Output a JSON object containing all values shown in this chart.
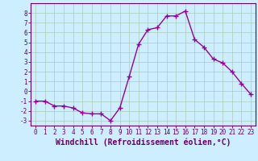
{
  "xlabel": "Windchill (Refroidissement éolien,°C)",
  "x": [
    0,
    1,
    2,
    3,
    4,
    5,
    6,
    7,
    8,
    9,
    10,
    11,
    12,
    13,
    14,
    15,
    16,
    17,
    18,
    19,
    20,
    21,
    22,
    23
  ],
  "y": [
    -1,
    -1,
    -1.5,
    -1.5,
    -1.7,
    -2.2,
    -2.3,
    -2.3,
    -3.0,
    -1.7,
    1.5,
    4.8,
    6.3,
    6.5,
    7.7,
    7.7,
    8.2,
    5.3,
    4.5,
    3.3,
    2.9,
    2.0,
    0.8,
    -0.3
  ],
  "line_color": "#990099",
  "marker": "+",
  "markersize": 4,
  "linewidth": 1.0,
  "bg_color": "#cceeff",
  "grid_color": "#aaccbb",
  "ylim": [
    -3.5,
    9.0
  ],
  "xlim": [
    -0.5,
    23.5
  ],
  "yticks": [
    -3,
    -2,
    -1,
    0,
    1,
    2,
    3,
    4,
    5,
    6,
    7,
    8
  ],
  "xticks": [
    0,
    1,
    2,
    3,
    4,
    5,
    6,
    7,
    8,
    9,
    10,
    11,
    12,
    13,
    14,
    15,
    16,
    17,
    18,
    19,
    20,
    21,
    22,
    23
  ],
  "tick_color": "#660066",
  "tick_fontsize": 5.5,
  "xlabel_fontsize": 7.0,
  "spine_color": "#660066",
  "markeredgewidth": 1.0
}
